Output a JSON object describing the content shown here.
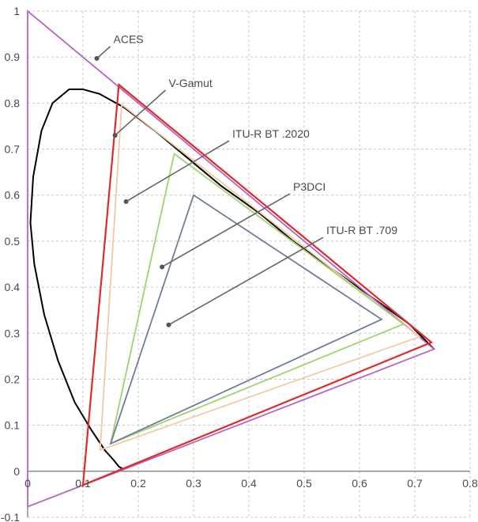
{
  "chart_data": {
    "type": "line",
    "title": "",
    "xlabel": "",
    "ylabel": "",
    "xlim": [
      0,
      0.8
    ],
    "ylim": [
      -0.1,
      1.0
    ],
    "grid": "dashed",
    "x_ticks": [
      {
        "value": 0,
        "label": "0"
      },
      {
        "value": 0.1,
        "label": "0.1"
      },
      {
        "value": 0.2,
        "label": "0.2"
      },
      {
        "value": 0.3,
        "label": "0.3"
      },
      {
        "value": 0.4,
        "label": "0.4"
      },
      {
        "value": 0.5,
        "label": "0.5"
      },
      {
        "value": 0.6,
        "label": "0.6"
      },
      {
        "value": 0.7,
        "label": "0.7"
      },
      {
        "value": 0.8,
        "label": "0.8"
      }
    ],
    "y_ticks": [
      {
        "value": -0.1,
        "label": "-0.1"
      },
      {
        "value": 0,
        "label": "0"
      },
      {
        "value": 0.1,
        "label": "0.1"
      },
      {
        "value": 0.2,
        "label": "0.2"
      },
      {
        "value": 0.3,
        "label": "0.3"
      },
      {
        "value": 0.4,
        "label": "0.4"
      },
      {
        "value": 0.5,
        "label": "0.5"
      },
      {
        "value": 0.6,
        "label": "0.6"
      },
      {
        "value": 0.7,
        "label": "0.7"
      },
      {
        "value": 0.8,
        "label": "0.8"
      },
      {
        "value": 0.9,
        "label": "0.9"
      },
      {
        "value": 1.0,
        "label": "1"
      }
    ],
    "spectral_locus": {
      "color": "#000000",
      "points": [
        [
          0.174,
          0.005
        ],
        [
          0.172,
          0.005
        ],
        [
          0.165,
          0.01
        ],
        [
          0.155,
          0.025
        ],
        [
          0.14,
          0.045
        ],
        [
          0.115,
          0.09
        ],
        [
          0.085,
          0.15
        ],
        [
          0.055,
          0.24
        ],
        [
          0.03,
          0.34
        ],
        [
          0.012,
          0.45
        ],
        [
          0.005,
          0.54
        ],
        [
          0.01,
          0.64
        ],
        [
          0.025,
          0.74
        ],
        [
          0.045,
          0.8
        ],
        [
          0.075,
          0.83
        ],
        [
          0.1,
          0.83
        ],
        [
          0.13,
          0.82
        ],
        [
          0.175,
          0.79
        ],
        [
          0.23,
          0.74
        ],
        [
          0.29,
          0.68
        ],
        [
          0.35,
          0.62
        ],
        [
          0.42,
          0.56
        ],
        [
          0.48,
          0.5
        ],
        [
          0.55,
          0.44
        ],
        [
          0.62,
          0.38
        ],
        [
          0.69,
          0.32
        ],
        [
          0.735,
          0.265
        ]
      ]
    },
    "gamuts": [
      {
        "name": "ACES",
        "color": "#b565c5",
        "points": [
          [
            0.7347,
            0.2653
          ],
          [
            0.0,
            1.0
          ],
          [
            0.0001,
            -0.077
          ]
        ]
      },
      {
        "name": "V-Gamut",
        "color": "#e02a2a",
        "points": [
          [
            0.73,
            0.28
          ],
          [
            0.165,
            0.84
          ],
          [
            0.1,
            -0.03
          ]
        ]
      },
      {
        "name": "ITU-R BT .2020",
        "color": "#f3c9a6",
        "points": [
          [
            0.708,
            0.292
          ],
          [
            0.17,
            0.797
          ],
          [
            0.131,
            0.046
          ]
        ]
      },
      {
        "name": "P3DCI",
        "color": "#9fd36e",
        "points": [
          [
            0.68,
            0.32
          ],
          [
            0.265,
            0.69
          ],
          [
            0.15,
            0.06
          ]
        ]
      },
      {
        "name": "ITU-R BT .709",
        "color": "#6e7d9e",
        "points": [
          [
            0.64,
            0.33
          ],
          [
            0.3,
            0.6
          ],
          [
            0.15,
            0.06
          ]
        ]
      }
    ],
    "annotations": [
      {
        "text": "ACES",
        "point": [
          0.125,
          0.897
        ],
        "text_at": [
          0.155,
          0.93
        ]
      },
      {
        "text": "V-Gamut",
        "point": [
          0.158,
          0.73
        ],
        "text_at": [
          0.255,
          0.835
        ]
      },
      {
        "text": "ITU-R BT .2020",
        "point": [
          0.178,
          0.586
        ],
        "text_at": [
          0.37,
          0.725
        ]
      },
      {
        "text": "P3DCI",
        "point": [
          0.243,
          0.444
        ],
        "text_at": [
          0.48,
          0.61
        ]
      },
      {
        "text": "ITU-R BT .709",
        "point": [
          0.255,
          0.318
        ],
        "text_at": [
          0.54,
          0.515
        ]
      }
    ]
  }
}
